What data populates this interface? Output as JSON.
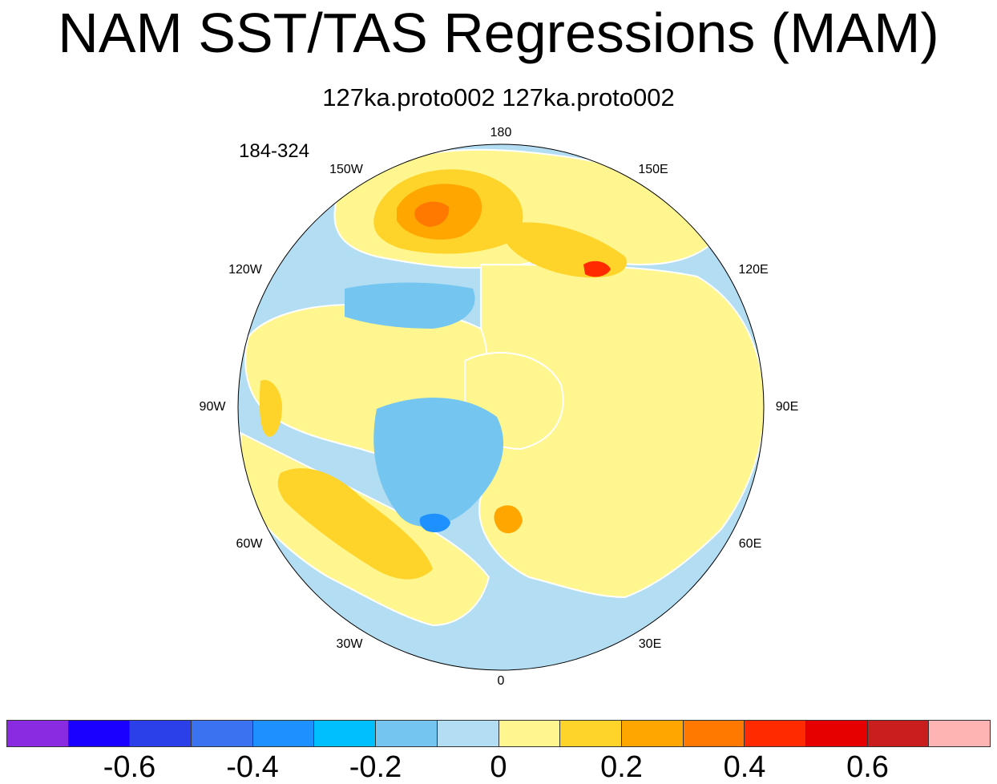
{
  "title": "NAM SST/TAS Regressions (MAM)",
  "subtitle": "127ka.proto002  127ka.proto002",
  "years": "184-324",
  "lon_labels": {
    "top": "180",
    "top_right": "150E",
    "right_upper": "120E",
    "right": "90E",
    "right_lower": "60E",
    "bottom_right": "30E",
    "bottom": "0",
    "bottom_left": "30W",
    "left_lower": "60W",
    "left": "90W",
    "left_upper": "120W",
    "top_left": "150W"
  },
  "colorbar": {
    "colors": [
      "#8a2be2",
      "#1a00ff",
      "#2b40e8",
      "#3a72f0",
      "#1e90ff",
      "#00bfff",
      "#74c6f0",
      "#b3ddf2",
      "#fff68f",
      "#ffd42a",
      "#ffa600",
      "#ff7800",
      "#ff2a00",
      "#e60000",
      "#c81e1e",
      "#ffb4b4"
    ],
    "ticks": [
      "-0.6",
      "-0.4",
      "-0.2",
      "0",
      "0.2",
      "0.4",
      "0.6"
    ]
  },
  "map_colors": {
    "land": "#fff68f",
    "ocean": "#b3ddf2",
    "neg_light": "#74c6f0",
    "neg_mid": "#1e90ff",
    "pos_light": "#ffd42a",
    "pos_mid": "#ffa600",
    "pos_high": "#ff7800",
    "pos_peak": "#ff2a00",
    "coast": "#555555",
    "land_halo": "#ffffff"
  }
}
